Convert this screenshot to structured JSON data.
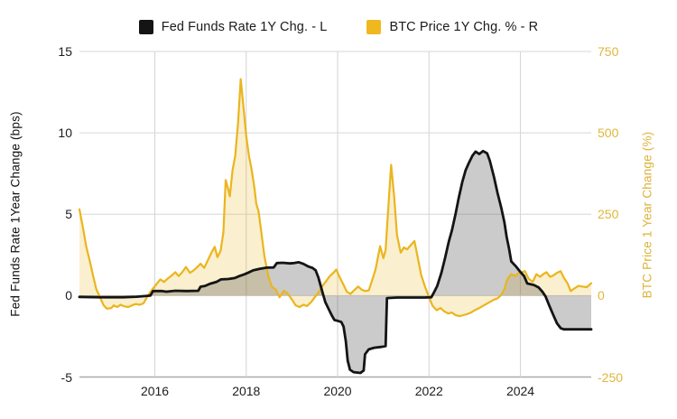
{
  "legend": [
    {
      "label": "Fed Funds Rate 1Y Chg. - L",
      "color": "#141414"
    },
    {
      "label": "BTC Price 1Y Chg. % - R",
      "color": "#f0b81f"
    }
  ],
  "axes": {
    "left": {
      "label": "Fed Funds Rate 1Year Change (bps)",
      "ticks": [
        15,
        10,
        5,
        0,
        -5
      ],
      "range": [
        -5,
        15
      ],
      "tick_color": "#1c1c1c"
    },
    "right": {
      "label": "BTC Price 1 Year Change (%)",
      "ticks": [
        750,
        500,
        250,
        0,
        -250
      ],
      "range": [
        -250,
        750
      ],
      "tick_color": "#e0b63b"
    },
    "x": {
      "ticks": [
        2016,
        2018,
        2020,
        2022,
        2024
      ],
      "range": [
        2014.35,
        2025.55
      ]
    }
  },
  "chart_data": {
    "type": "line",
    "title": "",
    "legend_position": "top",
    "grid": true,
    "grid_color": "#d7d7d7",
    "baseline_axis_color": "#ababab",
    "series": [
      {
        "name": "Fed Funds Rate 1Y Chg. - L",
        "axis": "left",
        "color": "#141414",
        "fill": "rgba(70,70,70,0.28)",
        "line_width": 2.8,
        "points": [
          [
            2014.35,
            -0.08
          ],
          [
            2014.8,
            -0.1
          ],
          [
            2015.3,
            -0.1
          ],
          [
            2015.6,
            -0.07
          ],
          [
            2015.9,
            0.0
          ],
          [
            2015.96,
            0.28
          ],
          [
            2016.15,
            0.28
          ],
          [
            2016.25,
            0.24
          ],
          [
            2016.45,
            0.3
          ],
          [
            2016.7,
            0.28
          ],
          [
            2016.95,
            0.3
          ],
          [
            2017.0,
            0.55
          ],
          [
            2017.1,
            0.6
          ],
          [
            2017.2,
            0.72
          ],
          [
            2017.35,
            0.85
          ],
          [
            2017.45,
            1.0
          ],
          [
            2017.6,
            1.02
          ],
          [
            2017.75,
            1.08
          ],
          [
            2017.85,
            1.2
          ],
          [
            2017.95,
            1.3
          ],
          [
            2018.05,
            1.42
          ],
          [
            2018.15,
            1.55
          ],
          [
            2018.3,
            1.65
          ],
          [
            2018.45,
            1.72
          ],
          [
            2018.6,
            1.73
          ],
          [
            2018.67,
            2.0
          ],
          [
            2018.8,
            2.02
          ],
          [
            2018.95,
            1.98
          ],
          [
            2019.05,
            2.0
          ],
          [
            2019.15,
            2.05
          ],
          [
            2019.25,
            1.95
          ],
          [
            2019.35,
            1.8
          ],
          [
            2019.45,
            1.7
          ],
          [
            2019.52,
            1.55
          ],
          [
            2019.58,
            1.1
          ],
          [
            2019.63,
            0.6
          ],
          [
            2019.68,
            0.1
          ],
          [
            2019.73,
            -0.4
          ],
          [
            2019.8,
            -0.8
          ],
          [
            2019.87,
            -1.2
          ],
          [
            2019.93,
            -1.5
          ],
          [
            2020.0,
            -1.55
          ],
          [
            2020.08,
            -1.62
          ],
          [
            2020.13,
            -1.9
          ],
          [
            2020.18,
            -2.8
          ],
          [
            2020.22,
            -4.0
          ],
          [
            2020.27,
            -4.55
          ],
          [
            2020.35,
            -4.7
          ],
          [
            2020.5,
            -4.75
          ],
          [
            2020.57,
            -4.6
          ],
          [
            2020.6,
            -3.6
          ],
          [
            2020.68,
            -3.3
          ],
          [
            2020.8,
            -3.2
          ],
          [
            2020.95,
            -3.15
          ],
          [
            2021.05,
            -3.1
          ],
          [
            2021.08,
            -0.15
          ],
          [
            2021.3,
            -0.12
          ],
          [
            2021.6,
            -0.12
          ],
          [
            2021.9,
            -0.12
          ],
          [
            2022.05,
            -0.1
          ],
          [
            2022.1,
            0.15
          ],
          [
            2022.18,
            0.6
          ],
          [
            2022.27,
            1.4
          ],
          [
            2022.35,
            2.3
          ],
          [
            2022.43,
            3.3
          ],
          [
            2022.5,
            4.0
          ],
          [
            2022.58,
            5.0
          ],
          [
            2022.65,
            6.0
          ],
          [
            2022.73,
            7.0
          ],
          [
            2022.8,
            7.7
          ],
          [
            2022.88,
            8.2
          ],
          [
            2022.95,
            8.6
          ],
          [
            2023.02,
            8.85
          ],
          [
            2023.1,
            8.7
          ],
          [
            2023.18,
            8.88
          ],
          [
            2023.27,
            8.75
          ],
          [
            2023.33,
            8.3
          ],
          [
            2023.42,
            7.3
          ],
          [
            2023.5,
            6.3
          ],
          [
            2023.58,
            5.4
          ],
          [
            2023.65,
            4.5
          ],
          [
            2023.7,
            3.6
          ],
          [
            2023.75,
            2.9
          ],
          [
            2023.8,
            2.1
          ],
          [
            2023.9,
            1.8
          ],
          [
            2024.0,
            1.45
          ],
          [
            2024.08,
            1.2
          ],
          [
            2024.15,
            0.75
          ],
          [
            2024.3,
            0.65
          ],
          [
            2024.4,
            0.5
          ],
          [
            2024.48,
            0.25
          ],
          [
            2024.55,
            -0.05
          ],
          [
            2024.63,
            -0.6
          ],
          [
            2024.72,
            -1.2
          ],
          [
            2024.8,
            -1.7
          ],
          [
            2024.88,
            -2.0
          ],
          [
            2024.95,
            -2.07
          ],
          [
            2025.2,
            -2.07
          ],
          [
            2025.55,
            -2.07
          ]
        ]
      },
      {
        "name": "BTC Price 1Y Chg. % - R",
        "axis": "right",
        "color": "#eab51e",
        "fill": "rgba(234,181,30,0.22)",
        "line_width": 2.2,
        "points": [
          [
            2014.35,
            265
          ],
          [
            2014.42,
            215
          ],
          [
            2014.5,
            150
          ],
          [
            2014.58,
            105
          ],
          [
            2014.65,
            60
          ],
          [
            2014.72,
            20
          ],
          [
            2014.8,
            -5
          ],
          [
            2014.88,
            -30
          ],
          [
            2014.95,
            -40
          ],
          [
            2015.05,
            -38
          ],
          [
            2015.1,
            -30
          ],
          [
            2015.18,
            -35
          ],
          [
            2015.25,
            -28
          ],
          [
            2015.33,
            -33
          ],
          [
            2015.42,
            -35
          ],
          [
            2015.5,
            -30
          ],
          [
            2015.58,
            -26
          ],
          [
            2015.67,
            -28
          ],
          [
            2015.75,
            -24
          ],
          [
            2015.8,
            -12
          ],
          [
            2015.87,
            5
          ],
          [
            2015.95,
            20
          ],
          [
            2016.05,
            38
          ],
          [
            2016.12,
            50
          ],
          [
            2016.2,
            42
          ],
          [
            2016.28,
            52
          ],
          [
            2016.37,
            62
          ],
          [
            2016.45,
            72
          ],
          [
            2016.52,
            60
          ],
          [
            2016.6,
            72
          ],
          [
            2016.68,
            88
          ],
          [
            2016.77,
            70
          ],
          [
            2016.85,
            78
          ],
          [
            2016.93,
            88
          ],
          [
            2017.0,
            98
          ],
          [
            2017.08,
            85
          ],
          [
            2017.17,
            112
          ],
          [
            2017.25,
            135
          ],
          [
            2017.31,
            150
          ],
          [
            2017.37,
            118
          ],
          [
            2017.44,
            138
          ],
          [
            2017.5,
            195
          ],
          [
            2017.55,
            355
          ],
          [
            2017.6,
            330
          ],
          [
            2017.64,
            305
          ],
          [
            2017.7,
            385
          ],
          [
            2017.76,
            430
          ],
          [
            2017.82,
            530
          ],
          [
            2017.88,
            665
          ],
          [
            2017.94,
            580
          ],
          [
            2018.0,
            490
          ],
          [
            2018.06,
            430
          ],
          [
            2018.12,
            385
          ],
          [
            2018.18,
            330
          ],
          [
            2018.22,
            283
          ],
          [
            2018.27,
            258
          ],
          [
            2018.33,
            195
          ],
          [
            2018.4,
            120
          ],
          [
            2018.48,
            62
          ],
          [
            2018.56,
            28
          ],
          [
            2018.65,
            18
          ],
          [
            2018.73,
            -5
          ],
          [
            2018.82,
            15
          ],
          [
            2018.9,
            8
          ],
          [
            2019.0,
            -12
          ],
          [
            2019.08,
            -30
          ],
          [
            2019.17,
            -35
          ],
          [
            2019.25,
            -28
          ],
          [
            2019.33,
            -32
          ],
          [
            2019.42,
            -20
          ],
          [
            2019.5,
            -5
          ],
          [
            2019.58,
            10
          ],
          [
            2019.67,
            30
          ],
          [
            2019.75,
            45
          ],
          [
            2019.83,
            60
          ],
          [
            2019.92,
            72
          ],
          [
            2019.97,
            80
          ],
          [
            2020.05,
            55
          ],
          [
            2020.13,
            33
          ],
          [
            2020.2,
            12
          ],
          [
            2020.28,
            5
          ],
          [
            2020.37,
            18
          ],
          [
            2020.45,
            28
          ],
          [
            2020.53,
            18
          ],
          [
            2020.6,
            14
          ],
          [
            2020.68,
            16
          ],
          [
            2020.75,
            45
          ],
          [
            2020.83,
            80
          ],
          [
            2020.93,
            152
          ],
          [
            2021.0,
            115
          ],
          [
            2021.05,
            140
          ],
          [
            2021.1,
            250
          ],
          [
            2021.17,
            402
          ],
          [
            2021.24,
            300
          ],
          [
            2021.3,
            186
          ],
          [
            2021.38,
            132
          ],
          [
            2021.45,
            148
          ],
          [
            2021.52,
            142
          ],
          [
            2021.6,
            155
          ],
          [
            2021.68,
            168
          ],
          [
            2021.75,
            120
          ],
          [
            2021.83,
            62
          ],
          [
            2021.92,
            25
          ],
          [
            2022.0,
            -5
          ],
          [
            2022.08,
            -32
          ],
          [
            2022.17,
            -45
          ],
          [
            2022.25,
            -38
          ],
          [
            2022.33,
            -48
          ],
          [
            2022.42,
            -55
          ],
          [
            2022.5,
            -52
          ],
          [
            2022.58,
            -60
          ],
          [
            2022.67,
            -63
          ],
          [
            2022.75,
            -60
          ],
          [
            2022.83,
            -57
          ],
          [
            2022.92,
            -52
          ],
          [
            2023.0,
            -45
          ],
          [
            2023.1,
            -38
          ],
          [
            2023.2,
            -30
          ],
          [
            2023.3,
            -22
          ],
          [
            2023.4,
            -14
          ],
          [
            2023.5,
            -8
          ],
          [
            2023.58,
            2
          ],
          [
            2023.65,
            20
          ],
          [
            2023.7,
            45
          ],
          [
            2023.75,
            58
          ],
          [
            2023.8,
            66
          ],
          [
            2023.88,
            60
          ],
          [
            2023.95,
            68
          ],
          [
            2024.03,
            72
          ],
          [
            2024.1,
            75
          ],
          [
            2024.18,
            52
          ],
          [
            2024.27,
            42
          ],
          [
            2024.35,
            66
          ],
          [
            2024.43,
            58
          ],
          [
            2024.5,
            66
          ],
          [
            2024.57,
            72
          ],
          [
            2024.65,
            58
          ],
          [
            2024.72,
            62
          ],
          [
            2024.8,
            70
          ],
          [
            2024.88,
            75
          ],
          [
            2024.95,
            55
          ],
          [
            2025.03,
            38
          ],
          [
            2025.1,
            14
          ],
          [
            2025.18,
            22
          ],
          [
            2025.27,
            30
          ],
          [
            2025.35,
            28
          ],
          [
            2025.45,
            26
          ],
          [
            2025.55,
            38
          ]
        ]
      }
    ]
  }
}
